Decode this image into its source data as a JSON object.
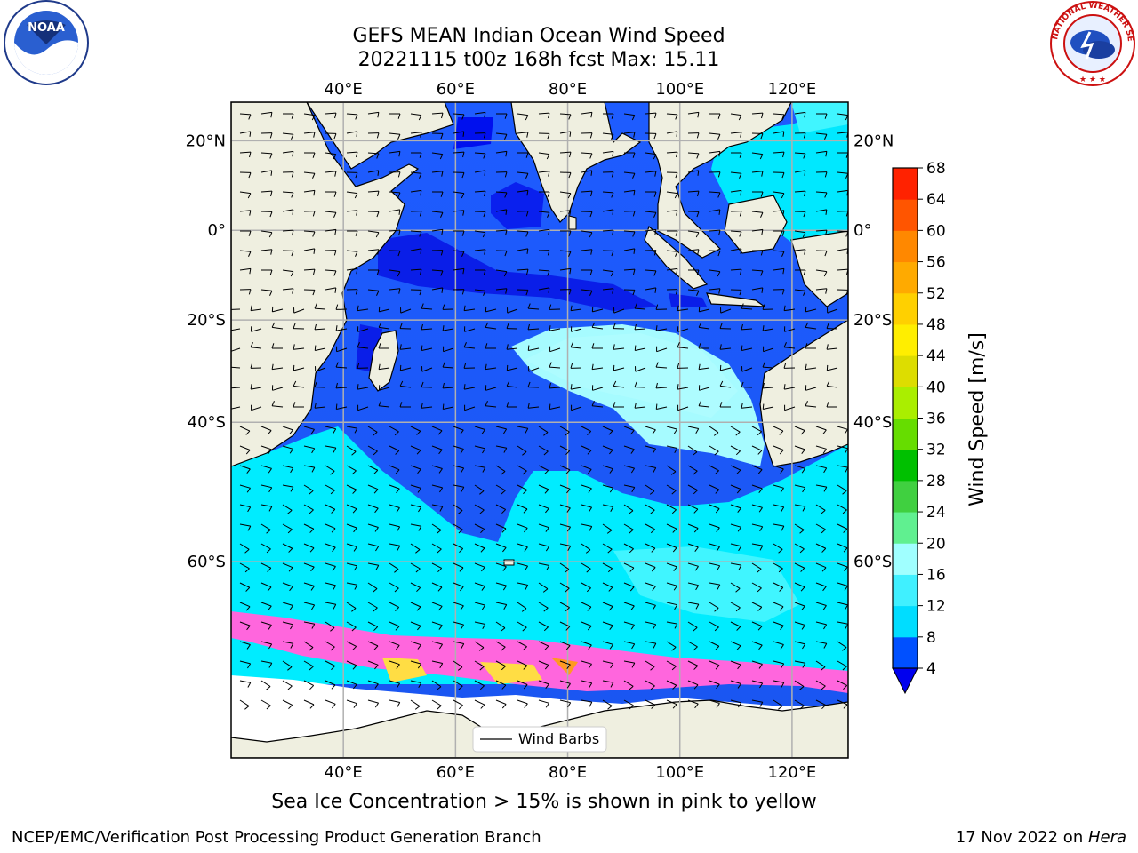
{
  "title_line1": "GEFS MEAN Indian Ocean Wind Speed",
  "title_line2": "20221115 t00z 168h fcst   Max: 15.11",
  "caption": "Sea Ice Concentration > 15% is shown in pink to yellow",
  "footer_left": "NCEP/EMC/Verification Post Processing Product Generation Branch",
  "footer_right_date": "17 Nov 2022 on ",
  "footer_right_host": "Hera",
  "map": {
    "lon_ticks": [
      "40°E",
      "60°E",
      "80°E",
      "100°E",
      "120°E"
    ],
    "lon_values": [
      40,
      60,
      80,
      100,
      120
    ],
    "lat_ticks_left": [
      "20°N",
      "0°",
      "20°S",
      "40°S",
      "60°S"
    ],
    "lat_ticks_right": [
      "20°N",
      "0°",
      "20°S",
      "40°S",
      "60°S"
    ],
    "lat_values": [
      20,
      0,
      -20,
      -40,
      -60
    ],
    "lon_range": [
      20,
      130
    ],
    "lat_range": [
      -76,
      28
    ],
    "legend_label": "Wind Barbs"
  },
  "colorbar": {
    "label": "Wind Speed [m/s]",
    "ticks": [
      "4",
      "8",
      "12",
      "16",
      "20",
      "24",
      "28",
      "32",
      "36",
      "40",
      "44",
      "48",
      "52",
      "56",
      "60",
      "64",
      "68"
    ],
    "colors": [
      "#0050ff",
      "#00ddff",
      "#40f0ff",
      "#a0ffff",
      "#60f090",
      "#40d040",
      "#00c000",
      "#66dd00",
      "#aaee00",
      "#dddd00",
      "#ffee00",
      "#ffd000",
      "#ffaa00",
      "#ff8800",
      "#ff5500",
      "#ff2200"
    ],
    "under_color": "#0000ee",
    "top_color": "#ff0000"
  },
  "colors": {
    "land": "#efefe0",
    "ice": "#ff66dd",
    "ice_yellow": "#ffdd44",
    "gridline": "#b0b0b0"
  },
  "logos": {
    "noaa_text": "NOAA",
    "nws_text": "NATIONAL WEATHER SERVICE"
  }
}
